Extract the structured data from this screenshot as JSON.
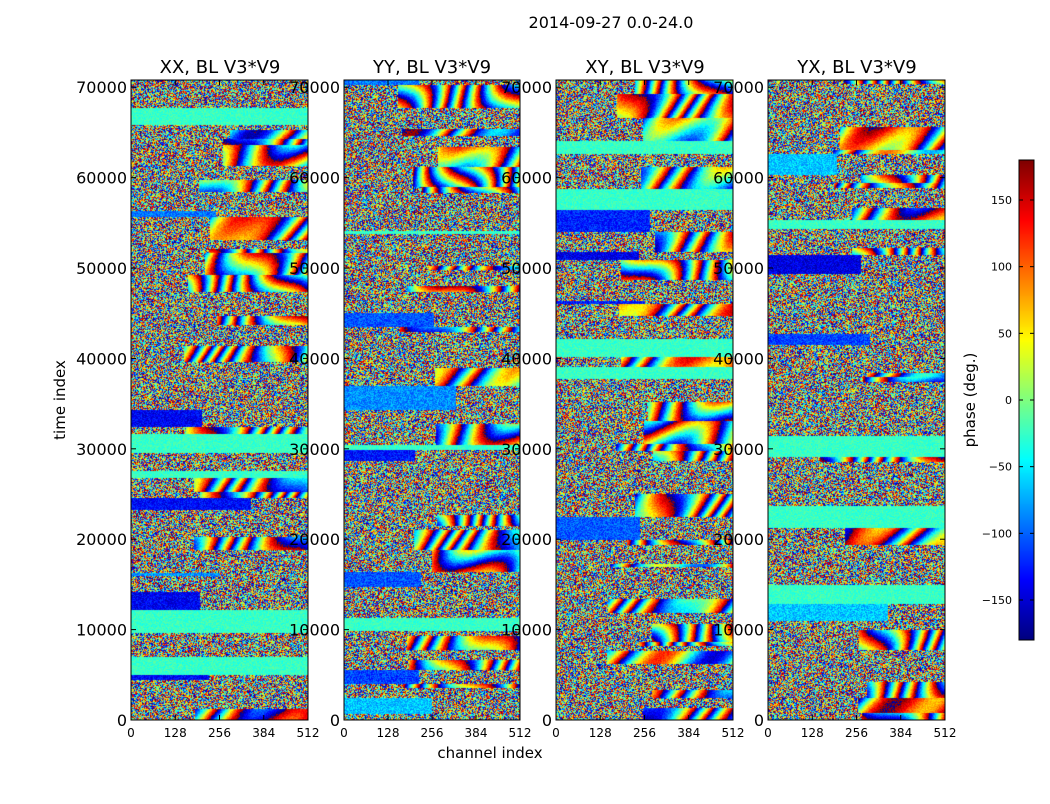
{
  "chart_data": {
    "type": "heatmap",
    "title": "2014-09-27 0.0-24.0",
    "xlabel": "channel index",
    "ylabel": "time index",
    "xlim": [
      0,
      512
    ],
    "ylim": [
      0,
      70800
    ],
    "xticks": [
      "0",
      "128",
      "256",
      "384",
      "512"
    ],
    "xtick_values": [
      0,
      128,
      256,
      384,
      512
    ],
    "yticks": [
      "0",
      "10000",
      "20000",
      "30000",
      "40000",
      "50000",
      "60000",
      "70000"
    ],
    "ytick_values": [
      0,
      10000,
      20000,
      30000,
      40000,
      50000,
      60000,
      70000
    ],
    "panels": [
      {
        "title": "XX, BL V3*V9",
        "seed": 11
      },
      {
        "title": "YY, BL V3*V9",
        "seed": 23
      },
      {
        "title": "XY, BL V3*V9",
        "seed": 37
      },
      {
        "title": "YX, BL V3*V9",
        "seed": 53
      }
    ],
    "colorbar": {
      "label": "phase (deg.)",
      "range": [
        -180,
        180
      ],
      "tick_values": [
        150,
        100,
        50,
        0,
        -50,
        -100,
        -150
      ],
      "tick_labels": [
        "150",
        "100",
        "50",
        "0",
        "−50",
        "−100",
        "−150"
      ],
      "colormap": "jet"
    }
  }
}
